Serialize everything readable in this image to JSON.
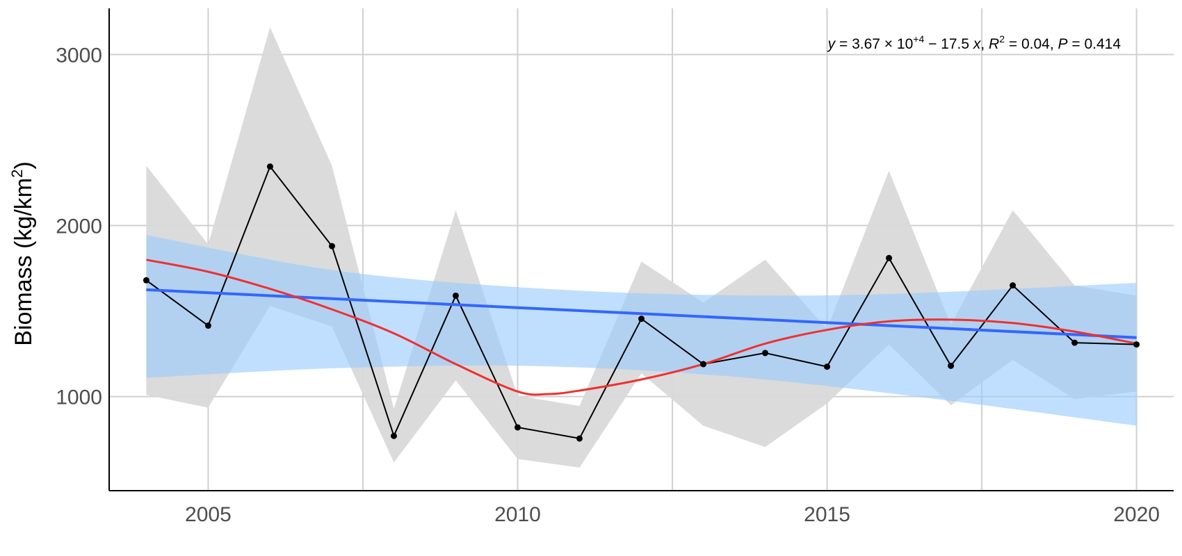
{
  "chart_data": {
    "type": "line",
    "title": "",
    "xlabel": "",
    "ylabel": "Biomass (kg/km²)",
    "ylabel_parts": {
      "base": "Biomass (kg/km",
      "sup": "2",
      "close": ")"
    },
    "xlim": [
      2003.4,
      2020.6
    ],
    "ylim": [
      450,
      3270
    ],
    "x_ticks": [
      2005,
      2010,
      2015,
      2020
    ],
    "x_minor_grid": [
      2007.5,
      2012.5,
      2017.5
    ],
    "y_ticks": [
      1000,
      2000,
      3000
    ],
    "y_minor_grid": [
      1500,
      2500
    ],
    "grid": true,
    "legend": "none",
    "x": [
      2004,
      2005,
      2006,
      2007,
      2008,
      2009,
      2010,
      2011,
      2012,
      2013,
      2014,
      2015,
      2016,
      2017,
      2018,
      2019,
      2020
    ],
    "series": [
      {
        "type": "line+points",
        "color": "#000000",
        "values": [
          1680,
          1415,
          2345,
          1880,
          770,
          1590,
          820,
          755,
          1455,
          1190,
          1255,
          1175,
          1810,
          1180,
          1650,
          1315,
          1305
        ]
      },
      {
        "type": "ribbon",
        "color": "#d9d9d9",
        "lower": [
          1010,
          935,
          1530,
          1410,
          615,
          1095,
          635,
          585,
          1135,
          830,
          705,
          960,
          1305,
          950,
          1215,
          985,
          1030
        ],
        "upper": [
          2350,
          1890,
          3160,
          2350,
          930,
          2090,
          1005,
          945,
          1790,
          1550,
          1800,
          1395,
          2320,
          1420,
          2090,
          1650,
          1590
        ]
      },
      {
        "type": "linear-fit",
        "color": "#3366ff",
        "intercept": 36695,
        "slope": -17.5,
        "ci_color": "#99ccff",
        "ci_lower": [
          1110,
          1165,
          1180,
          1130,
          1020,
          830
        ],
        "ci_upper": [
          1945,
          1740,
          1640,
          1595,
          1600,
          1665
        ],
        "ci_x": [
          2004,
          2007,
          2010,
          2013,
          2016,
          2020
        ]
      },
      {
        "type": "smooth",
        "color": "#f03030",
        "x": [
          2004,
          2005,
          2006,
          2007,
          2008,
          2009,
          2010,
          2010.5,
          2011,
          2012,
          2013,
          2014,
          2015,
          2016,
          2017,
          2018,
          2019,
          2020
        ],
        "values": [
          1800,
          1730,
          1630,
          1510,
          1370,
          1190,
          1030,
          1015,
          1035,
          1100,
          1190,
          1310,
          1390,
          1440,
          1450,
          1430,
          1380,
          1310
        ]
      }
    ],
    "annotation": {
      "y_lbl": "y",
      "eq": " = 3.67 × 10",
      "exp": "+4",
      "slope_part": " − 17.5 ",
      "x_lbl": "x",
      "sep1": ", ",
      "r_lbl": "R",
      "r_sup": "2",
      "r_val": " = 0.04, ",
      "p_lbl": "P",
      "p_val": " = 0.414"
    }
  }
}
